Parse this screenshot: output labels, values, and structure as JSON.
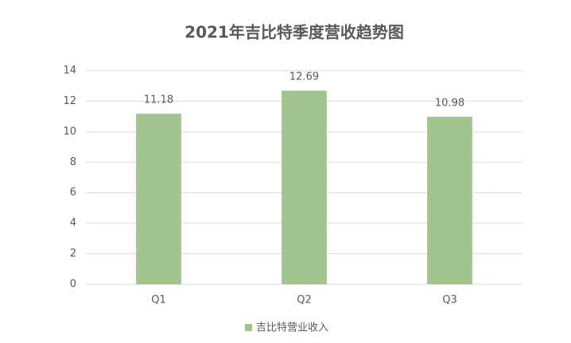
{
  "chart_data": {
    "type": "bar",
    "title": "2021年吉比特季度营收趋势图",
    "categories": [
      "Q1",
      "Q2",
      "Q3"
    ],
    "series": [
      {
        "name": "吉比特营业收入",
        "color": "#a2c48e",
        "values": [
          11.18,
          12.69,
          10.98
        ]
      }
    ],
    "ylim": [
      0,
      14
    ],
    "yticks": [
      0,
      2,
      4,
      6,
      8,
      10,
      12,
      14
    ],
    "grid": true,
    "legend": "bottom",
    "data_labels": true
  }
}
